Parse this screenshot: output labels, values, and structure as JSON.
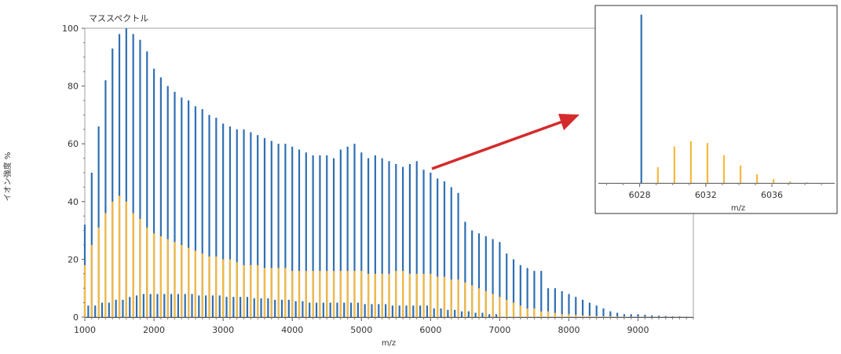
{
  "colors": {
    "blue": "#2f6fb3",
    "orange": "#f5b93f",
    "arrow": "#d42b2b",
    "frame": "#999999"
  },
  "chart_data": [
    {
      "type": "bar",
      "title": "マススペクトル",
      "xlabel": "m/z",
      "ylabel": "イオン強度 %",
      "xlim": [
        1000,
        9800
      ],
      "ylim": [
        0,
        100
      ],
      "xticks": [
        "1000",
        "2000",
        "3000",
        "4000",
        "5000",
        "6000",
        "7000",
        "8000",
        "9000"
      ],
      "yticks": [
        "0",
        "20",
        "40",
        "60",
        "80",
        "100"
      ],
      "grid": false,
      "series": [
        {
          "color": "blue",
          "x": [
            1000,
            1100,
            1200,
            1300,
            1400,
            1500,
            1600,
            1700,
            1800,
            1900,
            2000,
            2100,
            2200,
            2300,
            2400,
            2500,
            2600,
            2700,
            2800,
            2900,
            3000,
            3100,
            3200,
            3300,
            3400,
            3500,
            3600,
            3700,
            3800,
            3900,
            4000,
            4100,
            4200,
            4300,
            4400,
            4500,
            4600,
            4700,
            4800,
            4900,
            5000,
            5100,
            5200,
            5300,
            5400,
            5500,
            5600,
            5700,
            5800,
            5900,
            6000,
            6100,
            6200,
            6300,
            6400,
            6500,
            6600,
            6700,
            6800,
            6900,
            7000,
            7100,
            7200,
            7300,
            7400,
            7500,
            7600,
            7700,
            7800,
            7900,
            8000,
            8100,
            8200,
            8300,
            8400,
            8500,
            8600,
            8700,
            8800,
            8900,
            9000,
            9100,
            9200,
            9300,
            9400,
            9500,
            9600,
            9700
          ],
          "y": [
            32,
            50,
            66,
            82,
            93,
            98,
            100,
            98,
            96,
            92,
            86,
            83,
            80,
            78,
            76,
            75,
            73,
            72,
            70,
            69,
            67,
            66,
            65,
            65,
            64,
            63,
            62,
            61,
            60,
            60,
            59,
            58,
            57,
            56,
            56,
            56,
            55,
            58,
            59,
            60,
            57,
            55,
            56,
            55,
            54,
            53,
            52,
            53,
            54,
            51,
            50,
            48,
            47,
            45,
            43,
            33,
            30,
            29,
            28,
            27,
            26,
            22,
            20,
            18,
            17,
            16,
            16,
            10,
            10,
            9,
            8,
            7,
            6,
            5,
            4,
            3,
            2,
            1.5,
            1,
            1,
            1,
            0.8,
            0.6,
            0.5,
            0.4,
            0.3,
            0.3,
            0.2
          ]
        },
        {
          "color": "orange",
          "x": [
            1000,
            1100,
            1200,
            1300,
            1400,
            1500,
            1600,
            1700,
            1800,
            1900,
            2000,
            2100,
            2200,
            2300,
            2400,
            2500,
            2600,
            2700,
            2800,
            2900,
            3000,
            3100,
            3200,
            3300,
            3400,
            3500,
            3600,
            3700,
            3800,
            3900,
            4000,
            4100,
            4200,
            4300,
            4400,
            4500,
            4600,
            4700,
            4800,
            4900,
            5000,
            5100,
            5200,
            5300,
            5400,
            5500,
            5600,
            5700,
            5800,
            5900,
            6000,
            6100,
            6200,
            6300,
            6400,
            6500,
            6600,
            6700,
            6800,
            6900,
            7000,
            7100,
            7200,
            7300,
            7400,
            7500,
            7600,
            7700,
            7800,
            7900,
            8000,
            8100,
            8200,
            8300,
            8400,
            8500,
            8600,
            8700,
            8800,
            8900,
            9000,
            9100,
            9200,
            9300,
            9400,
            9500,
            9600,
            9700
          ],
          "y": [
            18,
            25,
            31,
            36,
            40,
            42,
            40,
            36,
            34,
            31,
            29,
            28,
            27,
            26,
            25,
            24,
            23,
            22,
            21,
            21,
            20,
            20,
            19,
            18,
            18,
            18,
            17,
            17,
            17,
            17,
            16,
            16,
            16,
            16,
            16,
            16,
            16,
            16,
            16,
            16,
            16,
            15,
            15,
            15,
            15,
            16,
            16,
            15,
            15,
            15,
            15,
            14,
            14,
            13,
            13,
            12,
            11,
            10,
            9,
            8,
            7,
            6,
            5,
            4,
            3,
            3,
            2,
            2,
            1.5,
            1,
            1,
            0.8,
            0.6,
            0.5,
            0.4,
            0.3,
            0.3,
            0.2,
            0.2,
            0.1,
            0.1,
            0.1,
            0.1,
            0.1,
            0.1,
            0.1,
            0.1,
            0.1
          ]
        },
        {
          "color": "blue",
          "x": [
            1050,
            1150,
            1250,
            1350,
            1450,
            1550,
            1650,
            1750,
            1850,
            1950,
            2050,
            2150,
            2250,
            2350,
            2450,
            2550,
            2650,
            2750,
            2850,
            2950,
            3050,
            3150,
            3250,
            3350,
            3450,
            3550,
            3650,
            3750,
            3850,
            3950,
            4050,
            4150,
            4250,
            4350,
            4450,
            4550,
            4650,
            4750,
            4850,
            4950,
            5050,
            5150,
            5250,
            5350,
            5450,
            5550,
            5650,
            5750,
            5850,
            5950,
            6050,
            6150,
            6250,
            6350,
            6450,
            6550,
            6650,
            6750,
            6850,
            6950
          ],
          "y": [
            4,
            4,
            5,
            5,
            6,
            6,
            7,
            7.5,
            8,
            8,
            8,
            8,
            8,
            8,
            8,
            8,
            7.5,
            7.5,
            7.5,
            7.5,
            7,
            7,
            7,
            7,
            6.5,
            6.5,
            6.5,
            6,
            6,
            6,
            5.5,
            5.5,
            5,
            5,
            5,
            5,
            5,
            5,
            5,
            5,
            4.5,
            4.5,
            4.5,
            4.5,
            4,
            4,
            4,
            4,
            4,
            4,
            3,
            3,
            2.5,
            2.5,
            2,
            2,
            1.5,
            1.5,
            1,
            1
          ]
        }
      ]
    },
    {
      "type": "bar",
      "xlabel": "m/z",
      "xlim": [
        6025.5,
        6039.8
      ],
      "ylim": [
        0,
        100
      ],
      "xticks": [
        "6028",
        "6032",
        "6036"
      ],
      "series": [
        {
          "color": "blue",
          "x": [
            6028.1
          ],
          "y": [
            97
          ]
        },
        {
          "color": "orange",
          "x": [
            6029.1,
            6030.1,
            6031.1,
            6032.1,
            6033.1,
            6034.1,
            6035.1,
            6036.1,
            6037.1,
            6038.1
          ],
          "y": [
            9,
            21,
            24,
            23,
            16,
            10,
            5,
            2.2,
            0.8,
            0.3
          ]
        }
      ]
    }
  ]
}
